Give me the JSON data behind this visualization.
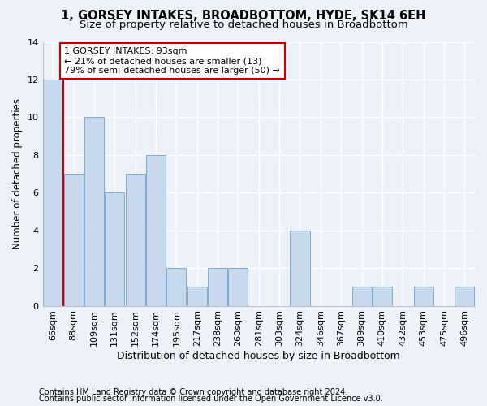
{
  "title": "1, GORSEY INTAKES, BROADBOTTOM, HYDE, SK14 6EH",
  "subtitle": "Size of property relative to detached houses in Broadbottom",
  "xlabel": "Distribution of detached houses by size in Broadbottom",
  "ylabel": "Number of detached properties",
  "categories": [
    "66sqm",
    "88sqm",
    "109sqm",
    "131sqm",
    "152sqm",
    "174sqm",
    "195sqm",
    "217sqm",
    "238sqm",
    "260sqm",
    "281sqm",
    "303sqm",
    "324sqm",
    "346sqm",
    "367sqm",
    "389sqm",
    "410sqm",
    "432sqm",
    "453sqm",
    "475sqm",
    "496sqm"
  ],
  "values": [
    12,
    7,
    10,
    6,
    7,
    8,
    2,
    1,
    2,
    2,
    0,
    0,
    4,
    0,
    0,
    1,
    1,
    0,
    1,
    0,
    1
  ],
  "red_line_x": 0.5,
  "normal_color": "#c8d9ee",
  "bar_edge_color": "#7aadd4",
  "annotation_text": "1 GORSEY INTAKES: 93sqm\n← 21% of detached houses are smaller (13)\n79% of semi-detached houses are larger (50) →",
  "annotation_box_color": "#ffffff",
  "annotation_border_color": "#cc0000",
  "ylim": [
    0,
    14
  ],
  "yticks": [
    0,
    2,
    4,
    6,
    8,
    10,
    12,
    14
  ],
  "footer1": "Contains HM Land Registry data © Crown copyright and database right 2024.",
  "footer2": "Contains public sector information licensed under the Open Government Licence v3.0.",
  "bg_color": "#edf2f9",
  "grid_color": "#ffffff",
  "title_fontsize": 10.5,
  "subtitle_fontsize": 9.5,
  "tick_fontsize": 8,
  "ylabel_fontsize": 8.5,
  "xlabel_fontsize": 9,
  "footer_fontsize": 7,
  "annotation_fontsize": 8
}
